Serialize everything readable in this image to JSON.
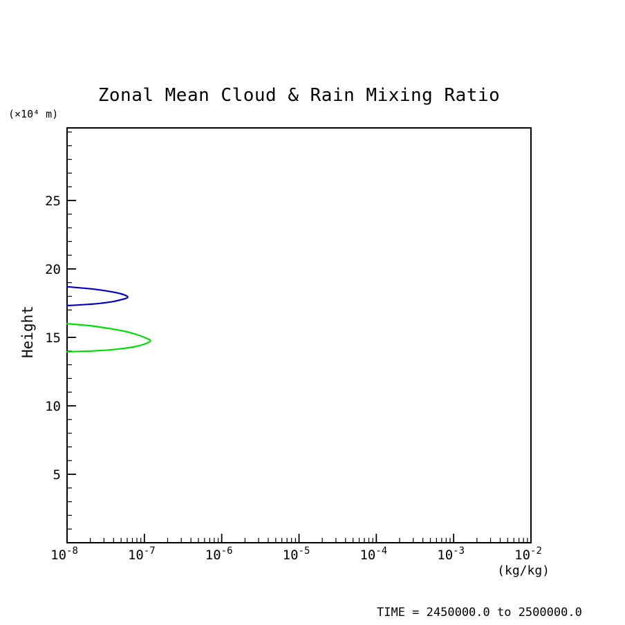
{
  "chart_data": {
    "type": "line",
    "subtype": "contour-profile",
    "title": "Zonal Mean Cloud & Rain Mixing Ratio",
    "xlabel": "(kg/kg)",
    "ylabel": "Height",
    "y_axis_units": "(×10⁴ m)",
    "annotation": "TIME = 2450000.0 to 2500000.0",
    "x_scale": "log10",
    "xlim_exponents": [
      -8,
      -2
    ],
    "ylim": [
      0,
      30.3
    ],
    "grid": false,
    "legend": "none",
    "frame_color": "#000000",
    "x_tick_base": "10",
    "x_major_tick_exponents": [
      -8,
      -7,
      -6,
      -5,
      -4,
      -3,
      -2
    ],
    "x_minor_ticks_per_decade": [
      2,
      3,
      4,
      5,
      6,
      7,
      8,
      9
    ],
    "y_major_ticks": [
      5,
      10,
      15,
      20,
      25
    ],
    "y_minor_tick_step": 1,
    "series": [
      {
        "name": "green-contour",
        "color": "#00dd00",
        "points": [
          [
            1e-08,
            16.0
          ],
          [
            2e-08,
            15.85
          ],
          [
            3.5e-08,
            15.65
          ],
          [
            5.5e-08,
            15.45
          ],
          [
            8e-08,
            15.2
          ],
          [
            1.05e-07,
            14.95
          ],
          [
            1.2e-07,
            14.75
          ],
          [
            1.05e-07,
            14.55
          ],
          [
            8e-08,
            14.35
          ],
          [
            5.5e-08,
            14.2
          ],
          [
            3.5e-08,
            14.08
          ],
          [
            2e-08,
            14.0
          ],
          [
            1e-08,
            13.95
          ]
        ]
      },
      {
        "name": "blue-contour",
        "color": "#0000cc",
        "points": [
          [
            1e-08,
            18.7
          ],
          [
            2e-08,
            18.55
          ],
          [
            3e-08,
            18.42
          ],
          [
            4e-08,
            18.3
          ],
          [
            5e-08,
            18.18
          ],
          [
            5.8e-08,
            18.05
          ],
          [
            6.1e-08,
            17.95
          ],
          [
            5.8e-08,
            17.85
          ],
          [
            5e-08,
            17.75
          ],
          [
            4e-08,
            17.62
          ],
          [
            3e-08,
            17.52
          ],
          [
            2e-08,
            17.42
          ],
          [
            1e-08,
            17.32
          ]
        ]
      }
    ]
  }
}
